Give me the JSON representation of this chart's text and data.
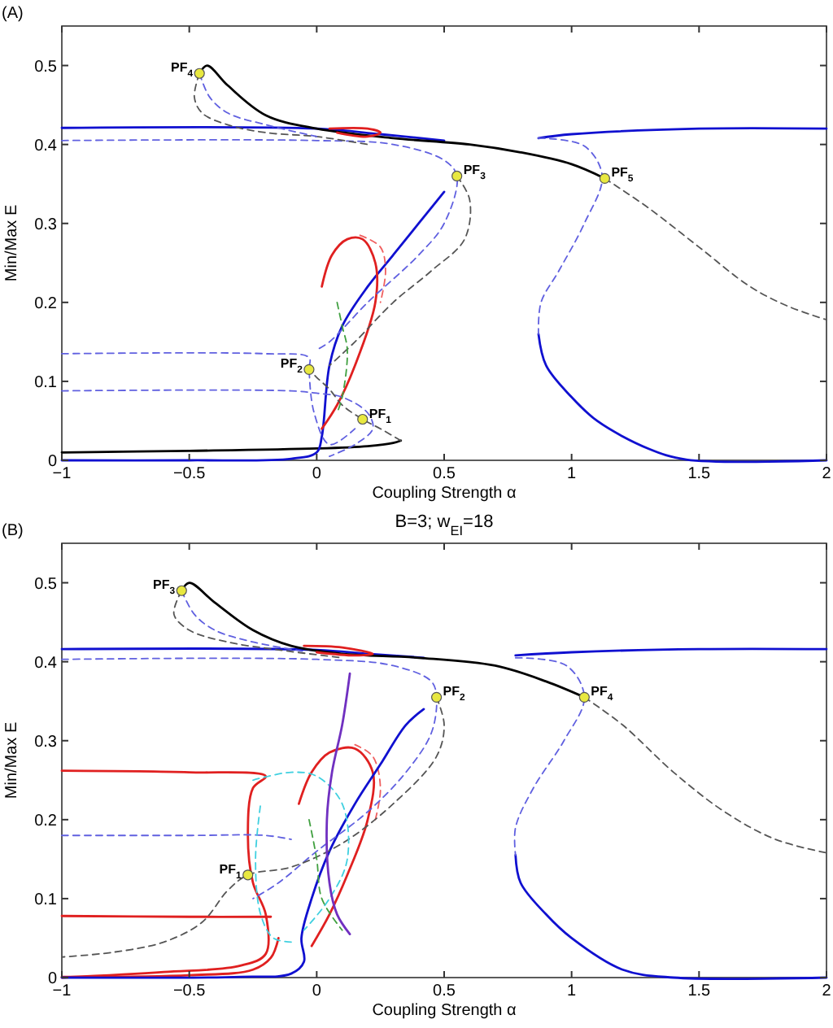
{
  "chart_data": [
    {
      "type": "line",
      "xlabel": "Coupling Strength α",
      "ylabel": "Min/Max E",
      "annotations": [
        "(A)",
        {
          "text": "PF$_{4}$",
          "x": -0.46,
          "y": 0.49
        },
        {
          "text": "PF$_{3}$",
          "x": 0.55,
          "y": 0.36
        },
        {
          "text": "PF$_{5}$",
          "x": 1.13,
          "y": 0.357
        },
        {
          "text": "PF$_{2}$",
          "x": -0.03,
          "y": 0.115
        },
        {
          "text": "PF$_{1}$",
          "x": 0.18,
          "y": 0.052
        }
      ],
      "xlim": [
        -1,
        2
      ],
      "xticks": [
        -1,
        -0.5,
        0,
        0.5,
        1,
        1.5,
        2
      ],
      "ylim": [
        0,
        0.55
      ],
      "yticks": [
        0,
        0.1,
        0.2,
        0.3,
        0.4,
        0.5
      ],
      "series": [
        {
          "color": "#1010d0",
          "line_style": "solid",
          "x": [
            -1,
            0,
            0.25,
            0.5
          ],
          "values": [
            0.421,
            0.42,
            0.413,
            0.405
          ]
        },
        {
          "color": "#1010d0",
          "line_style": "solid",
          "x": [
            0.87,
            1.0,
            1.5,
            2
          ],
          "values": [
            0.408,
            0.413,
            0.42,
            0.42
          ]
        },
        {
          "color": "#000000",
          "line_style": "solid",
          "x": [
            -0.46,
            -0.43,
            -0.35,
            -0.2,
            0,
            0.3,
            0.6,
            0.8,
            1.0,
            1.13
          ],
          "values": [
            0.49,
            0.5,
            0.475,
            0.437,
            0.42,
            0.408,
            0.4,
            0.39,
            0.375,
            0.357
          ]
        },
        {
          "color": "#555555",
          "line_style": "dashed",
          "x": [
            1.13,
            1.3,
            1.5,
            1.7,
            1.85,
            2
          ],
          "values": [
            0.357,
            0.32,
            0.27,
            0.22,
            0.195,
            0.178
          ]
        },
        {
          "color": "#1010d0",
          "line_style": "solid",
          "x": [
            0.87,
            0.9,
            1.0,
            1.1,
            1.3,
            1.45,
            2
          ],
          "values": [
            0.16,
            0.12,
            0.08,
            0.05,
            0.015,
            0.001,
            0
          ]
        },
        {
          "color": "#6060e0",
          "line_style": "dashed",
          "x": [
            0.87,
            1.05,
            1.12,
            1.05,
            0.95,
            0.88,
            0.87
          ],
          "values": [
            0.408,
            0.398,
            0.36,
            0.3,
            0.24,
            0.2,
            0.16
          ]
        },
        {
          "color": "#000000",
          "line_style": "solid",
          "x": [
            -1,
            -0.5,
            0,
            0.2,
            0.3,
            0.33
          ],
          "values": [
            0.01,
            0.012,
            0.015,
            0.018,
            0.022,
            0.025
          ]
        },
        {
          "color": "#1010d0",
          "line_style": "solid",
          "x": [
            -1,
            -0.5,
            -0.1,
            0,
            0.02,
            0.05,
            0.1,
            0.2,
            0.3,
            0.4,
            0.5
          ],
          "values": [
            0,
            0,
            0.002,
            0.01,
            0.03,
            0.12,
            0.17,
            0.22,
            0.26,
            0.3,
            0.34
          ]
        },
        {
          "color": "#e02020",
          "line_style": "solid",
          "x": [
            0.02,
            0.06,
            0.12,
            0.18,
            0.23,
            0.23,
            0.15,
            0.08,
            0.02
          ],
          "values": [
            0.22,
            0.26,
            0.28,
            0.28,
            0.25,
            0.2,
            0.12,
            0.07,
            0.04
          ]
        },
        {
          "color": "#f06060",
          "line_style": "dashed",
          "x": [
            0.17,
            0.25,
            0.27,
            0.25
          ],
          "values": [
            0.285,
            0.27,
            0.24,
            0.2
          ]
        },
        {
          "color": "#e02020",
          "line_style": "solid",
          "x": [
            0.05,
            0.2,
            0.25,
            0.2,
            0.08
          ],
          "values": [
            0.42,
            0.42,
            0.415,
            0.41,
            0.415
          ]
        },
        {
          "color": "#6060e0",
          "line_style": "dashed",
          "x": [
            -1,
            0,
            0.3,
            0.5,
            0.55,
            0.5,
            0.4,
            0.2,
            0.05,
            0
          ],
          "values": [
            0.405,
            0.405,
            0.4,
            0.38,
            0.36,
            0.3,
            0.26,
            0.2,
            0.15,
            0.14
          ]
        },
        {
          "color": "#555555",
          "line_style": "dashed",
          "x": [
            0.55,
            0.6,
            0.58,
            0.45,
            0.3,
            0.15,
            0.05
          ],
          "values": [
            0.36,
            0.33,
            0.28,
            0.24,
            0.2,
            0.15,
            0.12
          ]
        },
        {
          "color": "#6060e0",
          "line_style": "dashed",
          "x": [
            -1,
            -0.2,
            -0.03,
            -0.03,
            -0.01,
            0.05,
            0.15
          ],
          "values": [
            0.135,
            0.135,
            0.13,
            0.115,
            0.06,
            0.02,
            0.04
          ]
        },
        {
          "color": "#6060e0",
          "line_style": "dashed",
          "x": [
            -1,
            -0.1,
            0,
            0.1,
            0.2,
            0.22,
            0.15,
            0.05
          ],
          "values": [
            0.088,
            0.088,
            0.085,
            0.08,
            0.06,
            0.04,
            0.02,
            0.005
          ]
        },
        {
          "color": "#555555",
          "line_style": "dashed",
          "x": [
            0.33,
            0.25,
            0.18,
            0.1,
            0.05,
            0,
            -0.03
          ],
          "values": [
            0.025,
            0.04,
            0.052,
            0.07,
            0.09,
            0.105,
            0.115
          ]
        },
        {
          "color": "#555555",
          "line_style": "dashed",
          "x": [
            -0.46,
            -0.48,
            -0.45,
            -0.35,
            -0.2,
            0,
            0.2
          ],
          "values": [
            0.49,
            0.46,
            0.44,
            0.425,
            0.415,
            0.41,
            0.4
          ]
        },
        {
          "color": "#6060e0",
          "line_style": "dashed",
          "x": [
            -0.46,
            -0.42,
            -0.35,
            -0.2,
            0
          ],
          "values": [
            0.49,
            0.46,
            0.44,
            0.425,
            0.41
          ]
        },
        {
          "color": "#40a040",
          "line_style": "dashed",
          "x": [
            0.08,
            0.1,
            0.12,
            0.1,
            0.08
          ],
          "values": [
            0.2,
            0.17,
            0.14,
            0.08,
            0.06
          ]
        },
        {
          "type": "scatter",
          "color": "#e8e840",
          "marker": "circle",
          "x": [
            -0.46,
            0.55,
            1.13,
            -0.03,
            0.18
          ],
          "values": [
            0.49,
            0.36,
            0.357,
            0.115,
            0.052
          ]
        }
      ]
    },
    {
      "type": "line",
      "title": "B=3; w$_{EI}$=18",
      "xlabel": "Coupling Strength α",
      "ylabel": "Min/Max E",
      "annotations": [
        "(B)",
        {
          "text": "PF$_{3}$",
          "x": -0.53,
          "y": 0.49
        },
        {
          "text": "PF$_{2}$",
          "x": 0.47,
          "y": 0.355
        },
        {
          "text": "PF$_{4}$",
          "x": 1.05,
          "y": 0.355
        },
        {
          "text": "PF$_{1}$",
          "x": -0.27,
          "y": 0.13
        }
      ],
      "xlim": [
        -1,
        2
      ],
      "xticks": [
        -1,
        -0.5,
        0,
        0.5,
        1,
        1.5,
        2
      ],
      "ylim": [
        0,
        0.55
      ],
      "yticks": [
        0,
        0.1,
        0.2,
        0.3,
        0.4,
        0.5
      ],
      "series": [
        {
          "color": "#1010d0",
          "line_style": "solid",
          "x": [
            -1,
            0,
            0.2,
            0.42
          ],
          "values": [
            0.416,
            0.415,
            0.41,
            0.405
          ]
        },
        {
          "color": "#1010d0",
          "line_style": "solid",
          "x": [
            0.78,
            1,
            1.5,
            2
          ],
          "values": [
            0.408,
            0.412,
            0.416,
            0.416
          ]
        },
        {
          "color": "#000000",
          "line_style": "solid",
          "x": [
            -0.53,
            -0.5,
            -0.4,
            -0.25,
            -0.1,
            0.1,
            0.4,
            0.7,
            0.9,
            1.05
          ],
          "values": [
            0.49,
            0.5,
            0.475,
            0.44,
            0.42,
            0.41,
            0.405,
            0.395,
            0.375,
            0.355
          ]
        },
        {
          "color": "#555555",
          "line_style": "dashed",
          "x": [
            1.05,
            1.2,
            1.4,
            1.6,
            1.8,
            2
          ],
          "values": [
            0.355,
            0.32,
            0.26,
            0.21,
            0.175,
            0.158
          ]
        },
        {
          "color": "#1010d0",
          "line_style": "solid",
          "x": [
            0.78,
            0.8,
            0.9,
            1.0,
            1.2,
            1.4,
            2
          ],
          "values": [
            0.155,
            0.12,
            0.08,
            0.05,
            0.01,
            0,
            0
          ]
        },
        {
          "color": "#6060e0",
          "line_style": "dashed",
          "x": [
            0.78,
            0.98,
            1.05,
            0.97,
            0.85,
            0.78,
            0.78
          ],
          "values": [
            0.405,
            0.395,
            0.355,
            0.3,
            0.24,
            0.19,
            0.155
          ]
        },
        {
          "color": "#e02020",
          "line_style": "solid",
          "x": [
            -1,
            -0.5,
            -0.2,
            -0.25,
            -0.27,
            -0.25,
            -0.2,
            -0.2,
            -0.3,
            -0.6,
            -1
          ],
          "values": [
            0.262,
            0.26,
            0.255,
            0.24,
            0.18,
            0.12,
            0.08,
            0.03,
            0.015,
            0.007,
            0
          ]
        },
        {
          "color": "#e02020",
          "line_style": "solid",
          "x": [
            -1,
            -0.5,
            -0.18
          ],
          "values": [
            0.078,
            0.077,
            0.077
          ]
        },
        {
          "color": "#e02020",
          "line_style": "solid",
          "x": [
            -1,
            -0.5,
            -0.25,
            -0.18,
            -0.15
          ],
          "values": [
            0.001,
            0.003,
            0.01,
            0.025,
            0.05
          ]
        },
        {
          "color": "#e02020",
          "line_style": "solid",
          "x": [
            -0.07,
            -0.02,
            0.05,
            0.15,
            0.22,
            0.2,
            0.12,
            0.05,
            -0.02
          ],
          "values": [
            0.22,
            0.26,
            0.285,
            0.29,
            0.26,
            0.2,
            0.13,
            0.08,
            0.04
          ]
        },
        {
          "color": "#f06060",
          "line_style": "dashed",
          "x": [
            0.15,
            0.22,
            0.25,
            0.23
          ],
          "values": [
            0.295,
            0.28,
            0.24,
            0.2
          ]
        },
        {
          "color": "#e02020",
          "line_style": "solid",
          "x": [
            -0.05,
            0.1,
            0.22,
            0.15,
            0
          ],
          "values": [
            0.42,
            0.418,
            0.41,
            0.408,
            0.412
          ]
        },
        {
          "color": "#1010d0",
          "line_style": "solid",
          "x": [
            -1,
            -0.3,
            -0.1,
            -0.05,
            -0.06,
            -0.02,
            0.05,
            0.15,
            0.25,
            0.35,
            0.42
          ],
          "values": [
            0,
            0.001,
            0.005,
            0.02,
            0.05,
            0.1,
            0.16,
            0.22,
            0.27,
            0.32,
            0.34
          ]
        },
        {
          "color": "#6060e0",
          "line_style": "dashed",
          "x": [
            -1,
            -0.5,
            -0.2,
            -0.1
          ],
          "values": [
            0.18,
            0.18,
            0.18,
            0.175
          ]
        },
        {
          "color": "#6060e0",
          "line_style": "dashed",
          "x": [
            -1,
            0,
            0.3,
            0.45,
            0.47,
            0.45,
            0.35,
            0.2,
            0,
            -0.15,
            -0.25
          ],
          "values": [
            0.403,
            0.403,
            0.395,
            0.375,
            0.355,
            0.31,
            0.26,
            0.21,
            0.16,
            0.12,
            0.1
          ]
        },
        {
          "color": "#555555",
          "line_style": "dashed",
          "x": [
            0.47,
            0.5,
            0.47,
            0.3,
            0.1,
            -0.1,
            -0.27,
            -0.35,
            -0.45,
            -0.6,
            -0.8,
            -1
          ],
          "values": [
            0.355,
            0.32,
            0.28,
            0.22,
            0.17,
            0.14,
            0.13,
            0.11,
            0.07,
            0.045,
            0.032,
            0.026
          ]
        },
        {
          "color": "#40d0e0",
          "line_style": "dashed",
          "x": [
            -0.25,
            -0.1,
            0,
            0.1,
            0.12,
            0.05,
            -0.05
          ],
          "values": [
            0.25,
            0.26,
            0.255,
            0.22,
            0.15,
            0.1,
            0.06
          ]
        },
        {
          "color": "#40d0e0",
          "line_style": "dashed",
          "x": [
            -0.1,
            -0.17,
            -0.22,
            -0.24,
            -0.22
          ],
          "values": [
            0.045,
            0.05,
            0.08,
            0.15,
            0.22
          ]
        },
        {
          "color": "#7030c0",
          "line_style": "solid",
          "x": [
            0.13,
            0.1,
            0.06,
            0.04,
            0.05,
            0.08,
            0.13
          ],
          "values": [
            0.385,
            0.32,
            0.26,
            0.2,
            0.12,
            0.08,
            0.055
          ]
        },
        {
          "color": "#555555",
          "line_style": "dashed",
          "x": [
            -0.53,
            -0.56,
            -0.5,
            -0.35,
            -0.15,
            0.1
          ],
          "values": [
            0.49,
            0.46,
            0.44,
            0.425,
            0.415,
            0.405
          ]
        },
        {
          "color": "#6060e0",
          "line_style": "dashed",
          "x": [
            -0.53,
            -0.48,
            -0.4,
            -0.25,
            -0.05
          ],
          "values": [
            0.49,
            0.46,
            0.44,
            0.425,
            0.413
          ]
        },
        {
          "color": "#40a040",
          "line_style": "dashed",
          "x": [
            -0.03,
            0,
            0.02,
            0.1
          ],
          "values": [
            0.2,
            0.15,
            0.1,
            0.06
          ]
        },
        {
          "type": "scatter",
          "color": "#e8e840",
          "marker": "circle",
          "x": [
            -0.53,
            0.47,
            1.05,
            -0.27
          ],
          "values": [
            0.49,
            0.355,
            0.355,
            0.13
          ]
        }
      ]
    }
  ]
}
